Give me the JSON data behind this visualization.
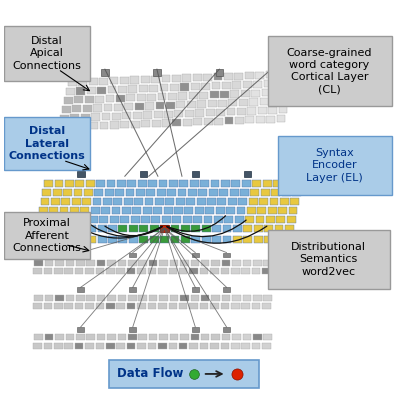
{
  "bg_color": "#ffffff",
  "labels": {
    "distal_apical": "Distal\nApical\nConnections",
    "distal_lateral": "Distal\nLateral\nConnections",
    "proximal_afferent": "Proximal\nAfferent\nConnections",
    "coarse_grained": "Coarse-grained\nword category\nCortical Layer\n(CL)",
    "syntax_encoder": "Syntax\nEncoder\nLayer (EL)",
    "distributional": "Distributional\nSemantics\nword2vec",
    "data_flow": "Data Flow"
  },
  "colors": {
    "bg_color": "#ffffff",
    "cl_light": "#d8d8d8",
    "cl_mid": "#c0c0c0",
    "cl_dark": "#909090",
    "el_blue": "#7ab0d8",
    "el_yellow": "#e8c840",
    "el_green": "#3a9a3a",
    "el_red": "#cc2200",
    "w2v_light": "#c8c8c8",
    "w2v_dark": "#888888",
    "label_gray_face": "#cccccc",
    "label_gray_edge": "#999999",
    "label_blue_face": "#aacce8",
    "label_blue_edge": "#6699cc",
    "label_blue_text": "#003388",
    "arrow_dark": "#333333",
    "arc_color": "#111111",
    "legend_face": "#aacce8",
    "legend_edge": "#6699cc",
    "green_dot": "#33aa33",
    "red_dot": "#dd2200"
  }
}
